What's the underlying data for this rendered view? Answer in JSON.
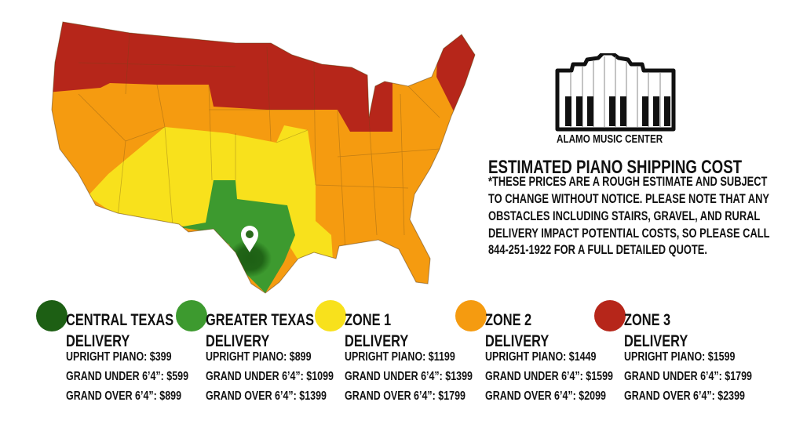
{
  "brand": {
    "name": "ALAMO MUSIC CENTER"
  },
  "heading": "ESTIMATED PIANO SHIPPING COST",
  "note_lines": [
    "*THESE PRICES ARE A ROUGH ESTIMATE AND SUBJECT",
    "TO CHANGE WITHOUT NOTICE. PLEASE NOTE THAT ANY",
    "OBSTACLES INCLUDING STAIRS, GRAVEL, AND RURAL",
    "DELIVERY IMPACT POTENTIAL COSTS, SO PLEASE CALL",
    "844-251-1922 FOR A FULL DETAILED QUOTE."
  ],
  "map": {
    "marker_icon": "location-pin-icon"
  },
  "colors": {
    "central_texas": "#1d5f14",
    "greater_texas": "#3d9a2f",
    "zone1": "#f8e11c",
    "zone2": "#f59b10",
    "zone3": "#b6261a"
  },
  "zones": [
    {
      "title": "CENTRAL TEXAS",
      "subtitle": "DELIVERY",
      "color": "#1d5f14",
      "prices": [
        "UPRIGHT PIANO: $399",
        "GRAND UNDER 6’4”: $599",
        "GRAND OVER 6’4”: $899"
      ]
    },
    {
      "title": "GREATER TEXAS",
      "subtitle": "DELIVERY",
      "color": "#3d9a2f",
      "prices": [
        "UPRIGHT PIANO: $899",
        "GRAND UNDER 6’4”: $1099",
        "GRAND OVER 6’4”: $1399"
      ]
    },
    {
      "title": "ZONE 1",
      "subtitle": "DELIVERY",
      "color": "#f8e11c",
      "prices": [
        "UPRIGHT PIANO: $1199",
        "GRAND UNDER 6’4”: $1399",
        "GRAND OVER 6’4”: $1799"
      ]
    },
    {
      "title": "ZONE 2",
      "subtitle": "DELIVERY",
      "color": "#f59b10",
      "prices": [
        "UPRIGHT PIANO: $1449",
        "GRAND UNDER 6’4”: $1599",
        "GRAND OVER 6’4”: $2099"
      ]
    },
    {
      "title": "ZONE 3",
      "subtitle": "DELIVERY",
      "color": "#b6261a",
      "prices": [
        "UPRIGHT PIANO: $1599",
        "GRAND UNDER 6’4”: $1799",
        "GRAND OVER 6’4”: $2399"
      ]
    }
  ]
}
